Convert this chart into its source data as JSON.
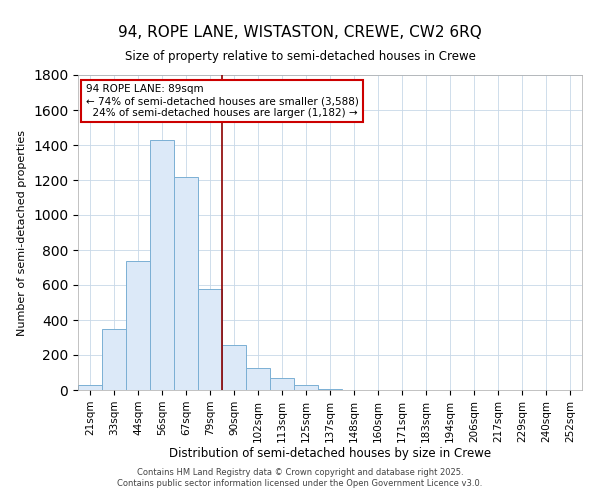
{
  "title": "94, ROPE LANE, WISTASTON, CREWE, CW2 6RQ",
  "subtitle": "Size of property relative to semi-detached houses in Crewe",
  "xlabel": "Distribution of semi-detached houses by size in Crewe",
  "ylabel": "Number of semi-detached properties",
  "bar_color": "#dce9f8",
  "bar_edge_color": "#7bafd4",
  "categories": [
    "21sqm",
    "33sqm",
    "44sqm",
    "56sqm",
    "67sqm",
    "79sqm",
    "90sqm",
    "102sqm",
    "113sqm",
    "125sqm",
    "137sqm",
    "148sqm",
    "160sqm",
    "171sqm",
    "183sqm",
    "194sqm",
    "206sqm",
    "217sqm",
    "229sqm",
    "240sqm",
    "252sqm"
  ],
  "values": [
    30,
    348,
    738,
    1430,
    1220,
    580,
    258,
    128,
    68,
    28,
    8,
    0,
    0,
    0,
    0,
    0,
    0,
    0,
    0,
    0,
    0
  ],
  "vline_x": 6.0,
  "pct_smaller": 74,
  "n_smaller": 3588,
  "pct_larger": 24,
  "n_larger": 1182,
  "ylim": [
    0,
    1800
  ],
  "yticks": [
    0,
    200,
    400,
    600,
    800,
    1000,
    1200,
    1400,
    1600,
    1800
  ],
  "footer_line1": "Contains HM Land Registry data © Crown copyright and database right 2025.",
  "footer_line2": "Contains public sector information licensed under the Open Government Licence v3.0.",
  "background_color": "#ffffff",
  "grid_color": "#c8d8e8"
}
